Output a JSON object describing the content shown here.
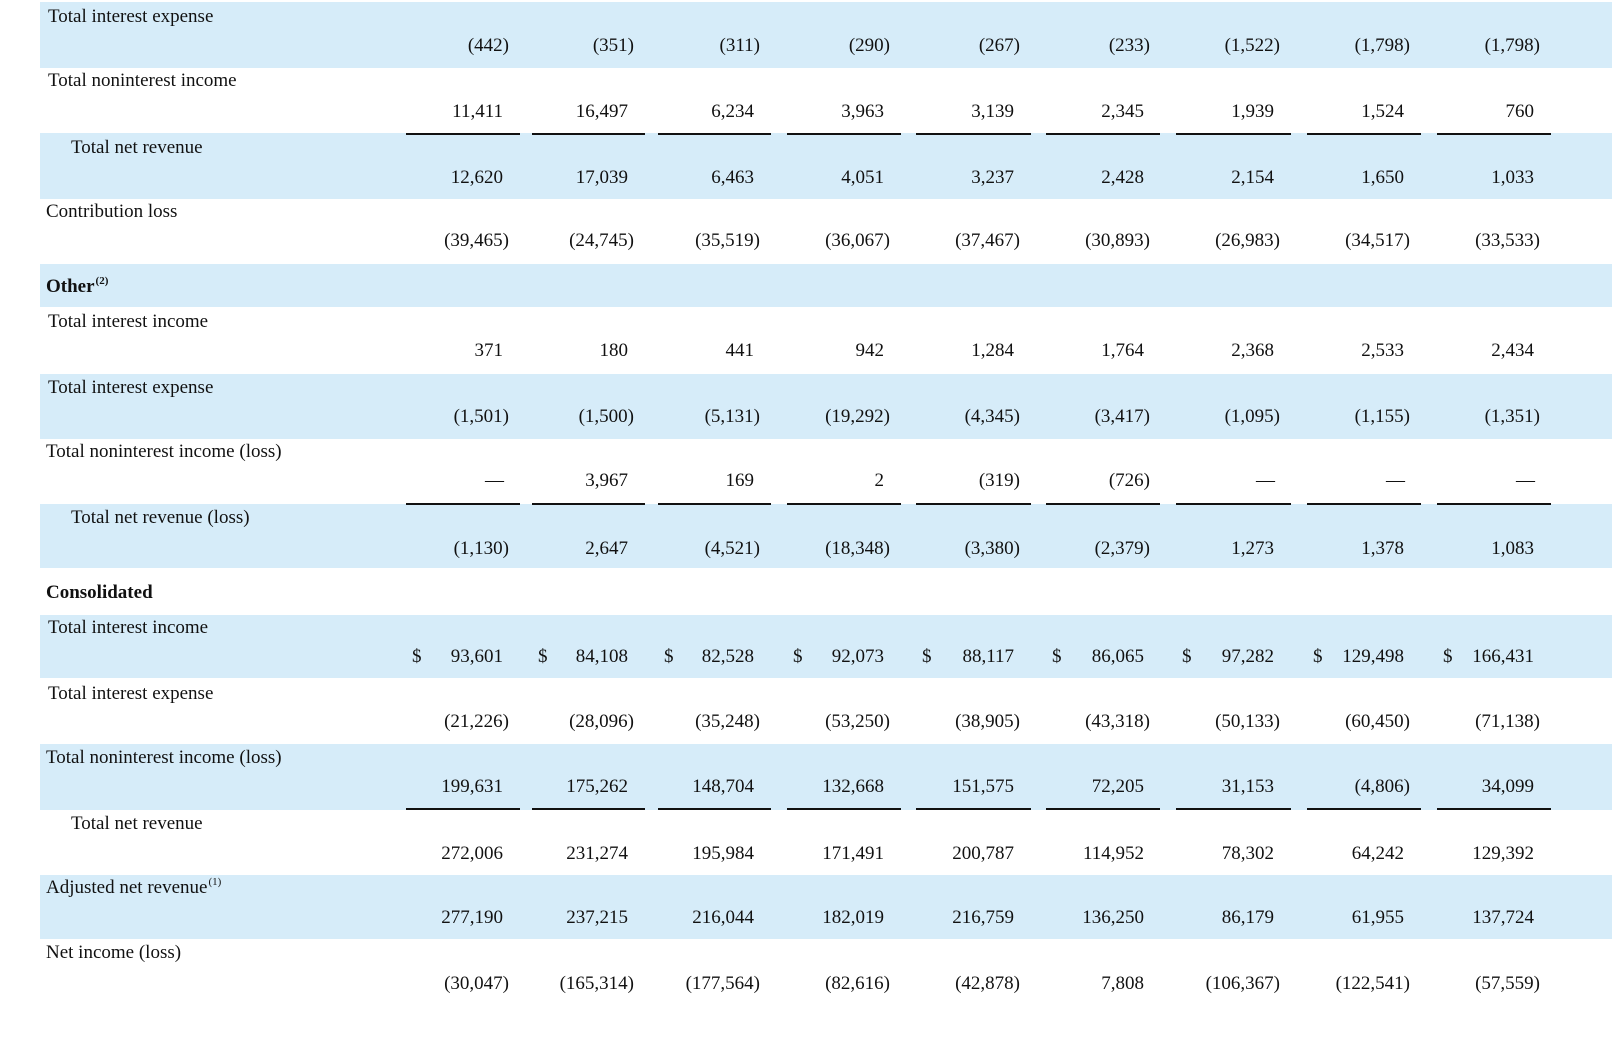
{
  "columns_count": 9,
  "rows": [
    {
      "label": "Total interest expense",
      "values": [
        "(442)",
        "(351)",
        "(311)",
        "(290)",
        "(267)",
        "(233)",
        "(1,522)",
        "(1,798)",
        "(1,798)"
      ]
    },
    {
      "label": "Total noninterest income",
      "values": [
        "11,411",
        "16,497",
        "6,234",
        "3,963",
        "3,139",
        "2,345",
        "1,939",
        "1,524",
        "760"
      ]
    },
    {
      "label": "Total net revenue",
      "values": [
        "12,620",
        "17,039",
        "6,463",
        "4,051",
        "3,237",
        "2,428",
        "2,154",
        "1,650",
        "1,033"
      ]
    },
    {
      "label": "Contribution loss",
      "values": [
        "(39,465)",
        "(24,745)",
        "(35,519)",
        "(36,067)",
        "(37,467)",
        "(30,893)",
        "(26,983)",
        "(34,517)",
        "(33,533)"
      ]
    },
    {
      "label": "Other",
      "sup": "(2)",
      "values": []
    },
    {
      "label": "Total interest income",
      "values": [
        "371",
        "180",
        "441",
        "942",
        "1,284",
        "1,764",
        "2,368",
        "2,533",
        "2,434"
      ]
    },
    {
      "label": "Total interest expense",
      "values": [
        "(1,501)",
        "(1,500)",
        "(5,131)",
        "(19,292)",
        "(4,345)",
        "(3,417)",
        "(1,095)",
        "(1,155)",
        "(1,351)"
      ]
    },
    {
      "label": "Total noninterest income (loss)",
      "values": [
        "—",
        "3,967",
        "169",
        "2",
        "(319)",
        "(726)",
        "—",
        "—",
        "—"
      ]
    },
    {
      "label": "Total net revenue (loss)",
      "values": [
        "(1,130)",
        "2,647",
        "(4,521)",
        "(18,348)",
        "(3,380)",
        "(2,379)",
        "1,273",
        "1,378",
        "1,083"
      ]
    },
    {
      "label": "Consolidated",
      "values": []
    },
    {
      "label": "Total interest income",
      "currency": "$",
      "values": [
        "93,601",
        "84,108",
        "82,528",
        "92,073",
        "88,117",
        "86,065",
        "97,282",
        "129,498",
        "166,431"
      ]
    },
    {
      "label": "Total interest expense",
      "values": [
        "(21,226)",
        "(28,096)",
        "(35,248)",
        "(53,250)",
        "(38,905)",
        "(43,318)",
        "(50,133)",
        "(60,450)",
        "(71,138)"
      ]
    },
    {
      "label": "Total noninterest income (loss)",
      "values": [
        "199,631",
        "175,262",
        "148,704",
        "132,668",
        "151,575",
        "72,205",
        "31,153",
        "(4,806)",
        "34,099"
      ]
    },
    {
      "label": "Total net revenue",
      "values": [
        "272,006",
        "231,274",
        "195,984",
        "171,491",
        "200,787",
        "114,952",
        "78,302",
        "64,242",
        "129,392"
      ]
    },
    {
      "label": "Adjusted net revenue",
      "sup": "(1)",
      "values": [
        "277,190",
        "237,215",
        "216,044",
        "182,019",
        "216,759",
        "136,250",
        "86,179",
        "61,955",
        "137,724"
      ]
    },
    {
      "label": "Net income (loss)",
      "values": [
        "(30,047)",
        "(165,314)",
        "(177,564)",
        "(82,616)",
        "(42,878)",
        "7,808",
        "(106,367)",
        "(122,541)",
        "(57,559)"
      ]
    }
  ]
}
